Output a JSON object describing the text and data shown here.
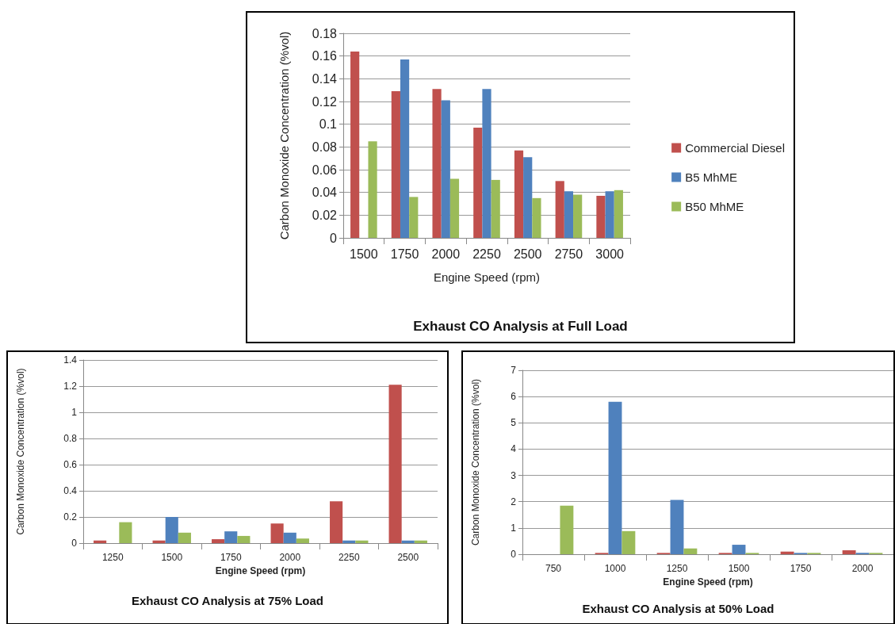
{
  "chart_data": [
    {
      "type": "bar",
      "title": "Exhaust CO Analysis at Full Load",
      "xlabel": "Engine Speed (rpm)",
      "ylabel": "Carbon Monoxide Concentration (%vol)",
      "categories": [
        "1500",
        "1750",
        "2000",
        "2250",
        "2500",
        "2750",
        "3000"
      ],
      "series": [
        {
          "name": "Commercial Diesel",
          "color": "#c0504d",
          "values": [
            0.164,
            0.129,
            0.131,
            0.097,
            0.077,
            0.05,
            0.037
          ]
        },
        {
          "name": "B5 MhME",
          "color": "#4f81bd",
          "values": [
            null,
            0.157,
            0.121,
            0.131,
            0.071,
            0.041,
            0.041
          ]
        },
        {
          "name": "B50 MhME",
          "color": "#9bbb59",
          "values": [
            0.085,
            0.036,
            0.052,
            0.051,
            0.035,
            0.038,
            0.042
          ]
        }
      ],
      "ylim": [
        0,
        0.18
      ],
      "yticks": [
        0,
        0.02,
        0.04,
        0.06,
        0.08,
        0.1,
        0.12,
        0.14,
        0.16,
        0.18
      ],
      "grid": "y",
      "legend": "right"
    },
    {
      "type": "bar",
      "title": "Exhaust CO Analysis at 75% Load",
      "xlabel": "Engine Speed (rpm)",
      "ylabel": "Carbon Monoxide Concentration (%vol)",
      "categories": [
        "1250",
        "1500",
        "1750",
        "2000",
        "2250",
        "2500"
      ],
      "series": [
        {
          "color": "#c0504d",
          "values": [
            0.02,
            0.02,
            0.03,
            0.15,
            0.32,
            1.21
          ]
        },
        {
          "color": "#4f81bd",
          "values": [
            null,
            0.2,
            0.09,
            0.08,
            0.02,
            0.02
          ]
        },
        {
          "color": "#9bbb59",
          "values": [
            0.16,
            0.08,
            0.055,
            0.035,
            0.02,
            0.02
          ]
        }
      ],
      "ylim": [
        0,
        1.4
      ],
      "yticks": [
        0,
        0.2,
        0.4,
        0.6,
        0.8,
        1,
        1.2,
        1.4
      ],
      "grid": "y",
      "legend": false
    },
    {
      "type": "bar",
      "title": "Exhaust CO Analysis at 50% Load",
      "xlabel": "Engine Speed (rpm)",
      "ylabel": "Carbon Monoxide Concentration (%vol)",
      "categories": [
        "750",
        "1000",
        "1250",
        "1500",
        "1750",
        "2000"
      ],
      "series": [
        {
          "color": "#c0504d",
          "values": [
            null,
            0.05,
            0.05,
            0.05,
            0.1,
            0.15
          ]
        },
        {
          "color": "#4f81bd",
          "values": [
            null,
            5.8,
            2.07,
            0.36,
            0.05,
            0.05
          ]
        },
        {
          "color": "#9bbb59",
          "values": [
            1.85,
            0.88,
            0.22,
            0.05,
            0.05,
            0.05
          ]
        }
      ],
      "ylim": [
        0,
        7
      ],
      "yticks": [
        0,
        1,
        2,
        3,
        4,
        5,
        6,
        7
      ],
      "grid": "y",
      "legend": false
    }
  ]
}
